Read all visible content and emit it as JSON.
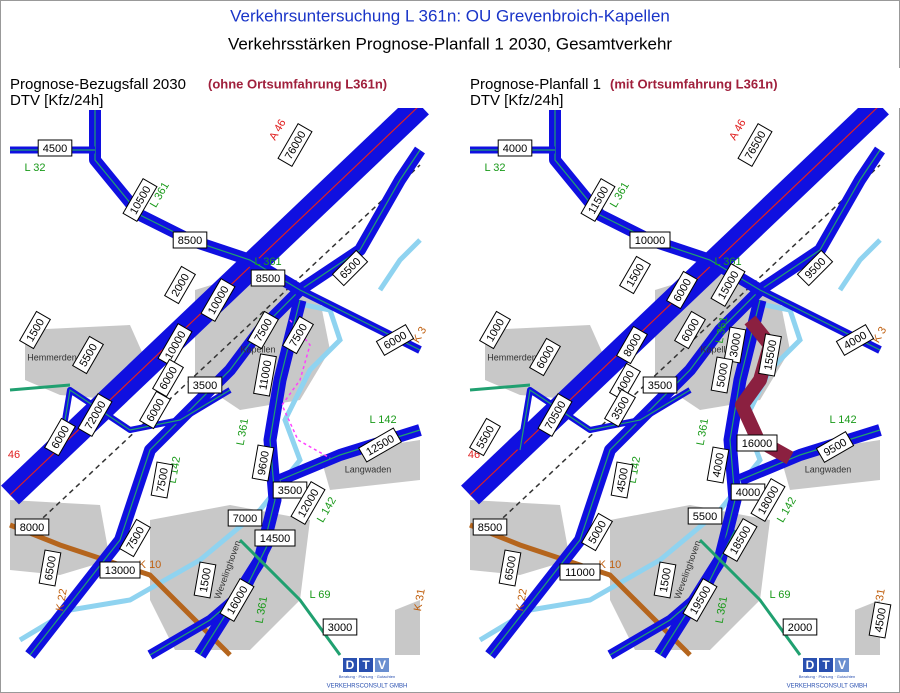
{
  "header": {
    "title": "Verkehrsuntersuchung L 361n: OU Grevenbroich-Kapellen",
    "subtitle": "Verkehrsstärken Prognose-Planfall 1 2030, Gesamtverkehr"
  },
  "maps": [
    {
      "title": "Prognose-Bezugsfall 2030",
      "note": "(ohne Ortsumfahrung L361n)",
      "unit": "DTV [Kfz/24h]",
      "counts": [
        4500,
        76000,
        10500,
        8500,
        8500,
        6500,
        2000,
        10000,
        7500,
        1500,
        10000,
        7500,
        5500,
        6000,
        6000,
        3500,
        11000,
        72000,
        6000,
        6000,
        12500,
        9600,
        7500,
        3500,
        7000,
        12000,
        7500,
        14500,
        8000,
        6500,
        13000,
        1500,
        16000,
        3000
      ],
      "roads": [
        "A 46",
        "L 32",
        "L 361",
        "L 361",
        "L 361",
        "L 361",
        "L 142",
        "L 142",
        "L 142",
        "K 10",
        "K 22",
        "L 69",
        "L 361",
        "K 3",
        "K 31",
        "46"
      ],
      "places": [
        "Hemmerden",
        "Kapellen",
        "Langwaden",
        "Wevelinghoven"
      ]
    },
    {
      "title": "Prognose-Planfall 1",
      "note": "(mit Ortsumfahrung L361n)",
      "unit": "DTV [Kfz/24h]",
      "counts": [
        4000,
        76500,
        11500,
        10000,
        15000,
        9500,
        1500,
        6000,
        6000,
        1000,
        8000,
        3000,
        6000,
        4000,
        4000,
        3500,
        5000,
        70500,
        3500,
        5500,
        9500,
        4000,
        4500,
        4000,
        5500,
        18000,
        5000,
        18500,
        8500,
        6500,
        11000,
        1500,
        19500,
        2000,
        15500,
        16000,
        4500
      ],
      "roads": [
        "A 46",
        "L 32",
        "L 361",
        "L 361",
        "L 361",
        "L 361",
        "L 142",
        "L 142",
        "L 142",
        "K 10",
        "K 22",
        "L 69",
        "L 361",
        "K 3",
        "K 31",
        "46"
      ],
      "places": [
        "Hemmerden",
        "Kapellen",
        "Langwaden",
        "Wevelinghoven"
      ]
    }
  ],
  "footer": {
    "logo": [
      "D",
      "T",
      "V"
    ],
    "tagline": "Beratung · Planung · Gutachten",
    "company": "VERKEHRSCONSULT GMBH"
  }
}
